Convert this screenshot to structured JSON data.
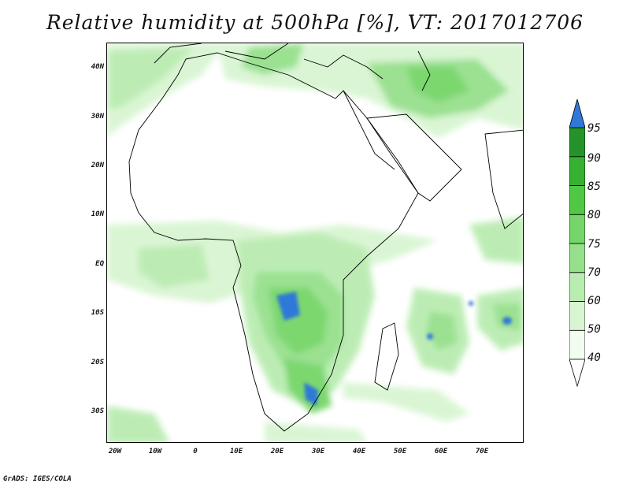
{
  "title": "Relative humidity at 500hPa [%], VT: 2017012706",
  "credit": "GrADS: IGES/COLA",
  "lat_labels": [
    "40N",
    "30N",
    "20N",
    "10N",
    "EQ",
    "10S",
    "20S",
    "30S"
  ],
  "lon_labels": [
    "20W",
    "10W",
    "0",
    "10E",
    "20E",
    "30E",
    "40E",
    "50E",
    "60E",
    "70E"
  ],
  "colorbar": {
    "levels": [
      "40",
      "50",
      "60",
      "70",
      "75",
      "80",
      "85",
      "90",
      "95"
    ],
    "colors": [
      "#f2fcf0",
      "#d8f5d2",
      "#b9ecb1",
      "#96e08c",
      "#74d568",
      "#50c846",
      "#36b131",
      "#24942a",
      "#2f78d8"
    ],
    "extend": "max"
  }
}
